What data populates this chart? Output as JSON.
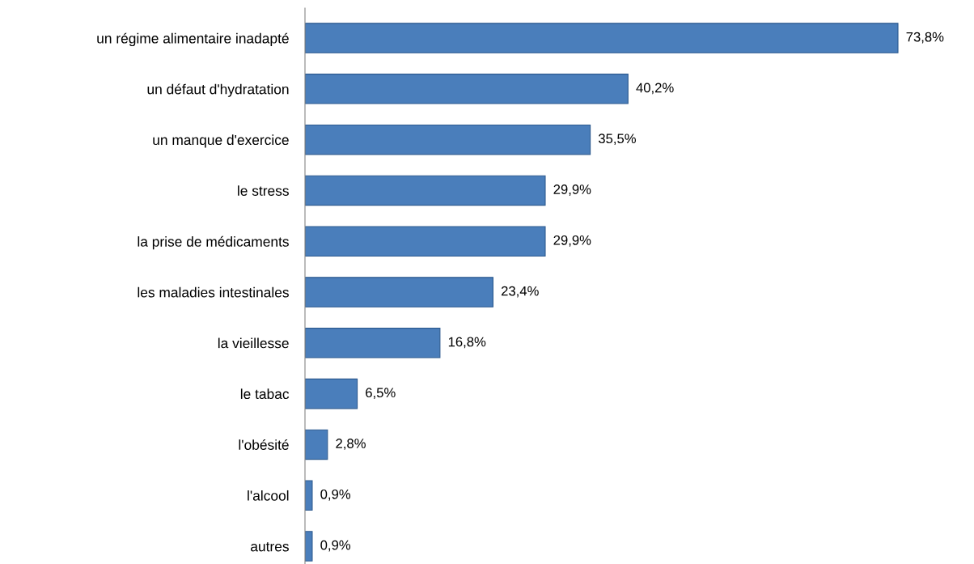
{
  "chart_data": {
    "type": "bar",
    "orientation": "horizontal",
    "categories": [
      "un régime alimentaire inadapté",
      "un défaut d'hydratation",
      "un manque d'exercice",
      "le stress",
      "la prise de médicaments",
      "les maladies intestinales",
      "la vieillesse",
      "le tabac",
      "l'obésité",
      "l'alcool",
      "autres"
    ],
    "values": [
      73.8,
      40.2,
      35.5,
      29.9,
      29.9,
      23.4,
      16.8,
      6.5,
      2.8,
      0.9,
      0.9
    ],
    "value_labels": [
      "73,8%",
      "40,2%",
      "35,5%",
      "29,9%",
      "29,9%",
      "23,4%",
      "16,8%",
      "6,5%",
      "2,8%",
      "0,9%",
      "0,9%"
    ],
    "color": "#4a7ebb",
    "grid": false,
    "legend": false
  }
}
